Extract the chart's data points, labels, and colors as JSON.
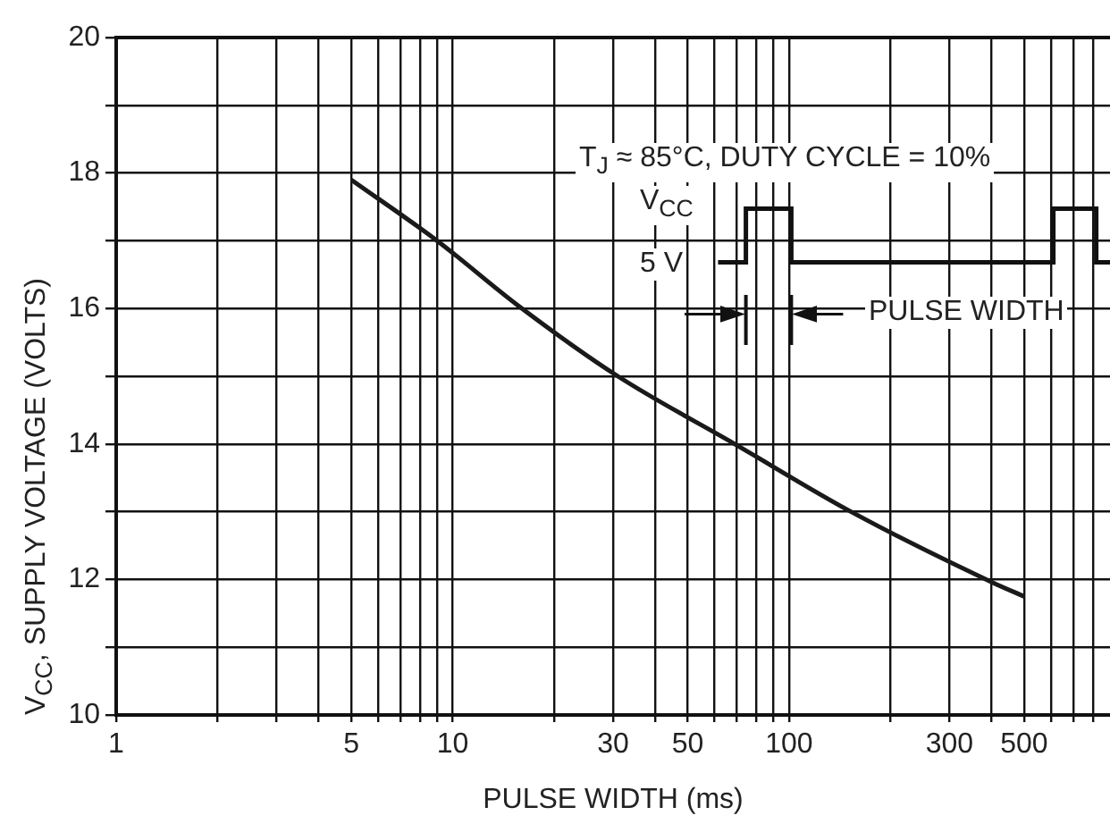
{
  "chart_data": {
    "type": "line",
    "xlabel": "PULSE WIDTH (ms)",
    "ylabel": "V$_{CC}$, SUPPLY VOLTAGE (VOLTS)",
    "log": "x",
    "grid": true,
    "marker": "none",
    "line_style": "solid",
    "xlim": [
      1,
      900
    ],
    "xticks": [
      1,
      {
        "value": 2,
        "label": null
      },
      {
        "value": 3,
        "label": null
      },
      {
        "value": 4,
        "label": null
      },
      5,
      {
        "value": 6,
        "label": null
      },
      {
        "value": 7,
        "label": null
      },
      {
        "value": 8,
        "label": null
      },
      {
        "value": 9,
        "label": null
      },
      10,
      {
        "value": 20,
        "label": null
      },
      30,
      {
        "value": 40,
        "label": null
      },
      50,
      {
        "value": 60,
        "label": null
      },
      {
        "value": 70,
        "label": null
      },
      {
        "value": 80,
        "label": null
      },
      {
        "value": 90,
        "label": null
      },
      100,
      {
        "value": 200,
        "label": null
      },
      300,
      {
        "value": 400,
        "label": null
      },
      500,
      {
        "value": 600,
        "label": null
      },
      {
        "value": 700,
        "label": null
      },
      {
        "value": 800,
        "label": null
      }
    ],
    "ylim": [
      10,
      20
    ],
    "yticks": [
      10,
      {
        "value": 11,
        "label": null
      },
      12,
      {
        "value": 13,
        "label": null
      },
      14,
      {
        "value": 15,
        "label": null
      },
      16,
      {
        "value": 17,
        "label": null
      },
      18,
      {
        "value": 19,
        "label": null
      },
      20
    ],
    "series": [
      {
        "color": "#1a1a1a",
        "x": [
          5,
          9,
          15.6,
          31,
          69,
          153,
          405,
          500
        ],
        "values": [
          17.9,
          17.0,
          16.05,
          15.0,
          14.0,
          13.0,
          11.95,
          11.75
        ]
      }
    ],
    "annotations": [
      "T$_{J}$ ≈ 85°C, DUTY CYCLE = 10%",
      "V$_{CC}$",
      "5 V",
      "PULSE WIDTH"
    ]
  }
}
